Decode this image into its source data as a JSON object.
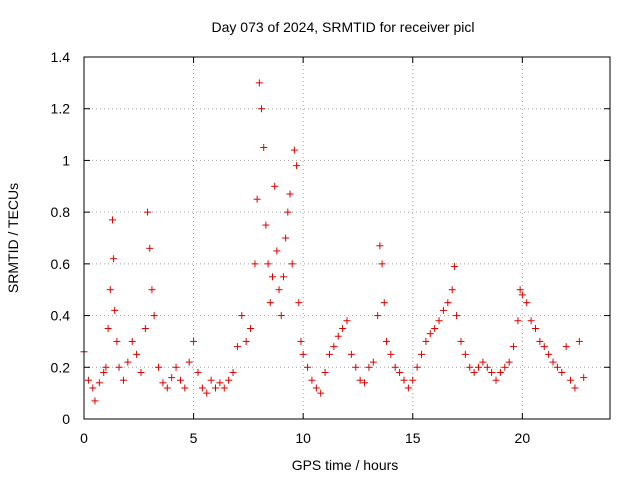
{
  "chart_data": {
    "type": "scatter",
    "title": "Day 073 of 2024, SRMTID for receiver picl",
    "xlabel": "GPS time / hours",
    "ylabel": "SRMTID / TECUs",
    "xlim": [
      0,
      24
    ],
    "ylim": [
      0,
      1.4
    ],
    "xticks": [
      0,
      5,
      10,
      15,
      20
    ],
    "yticks": [
      0,
      0.2,
      0.4,
      0.6,
      0.8,
      1,
      1.2,
      1.4
    ],
    "xtick_labels": [
      "0",
      "5",
      "10",
      "15",
      "20"
    ],
    "ytick_labels": [
      "0",
      "0.2",
      "0.4",
      "0.6",
      "0.8",
      "1",
      "1.2",
      "1.4"
    ],
    "grid": true,
    "marker": "+",
    "colors": {
      "series": "#e00000",
      "grid": "#a0a0a0",
      "axes": "#000000"
    },
    "series": [
      {
        "name": "SRMTID",
        "x": [
          0.0,
          0.2,
          0.4,
          0.5,
          0.7,
          0.9,
          1.0,
          1.1,
          1.2,
          1.3,
          1.35,
          1.4,
          1.5,
          1.6,
          1.8,
          2.0,
          2.2,
          2.4,
          2.6,
          2.8,
          2.9,
          3.0,
          3.1,
          3.2,
          3.4,
          3.6,
          3.8,
          4.0,
          4.2,
          4.4,
          4.6,
          4.8,
          5.0,
          5.2,
          5.4,
          5.6,
          5.8,
          6.0,
          6.2,
          6.4,
          6.6,
          6.8,
          7.0,
          7.2,
          7.4,
          7.6,
          7.8,
          7.9,
          8.0,
          8.1,
          8.2,
          8.3,
          8.4,
          8.5,
          8.6,
          8.7,
          8.8,
          8.9,
          9.0,
          9.1,
          9.2,
          9.3,
          9.4,
          9.5,
          9.6,
          9.7,
          9.8,
          9.9,
          10.0,
          10.2,
          10.4,
          10.6,
          10.8,
          11.0,
          11.2,
          11.4,
          11.6,
          11.8,
          12.0,
          12.2,
          12.4,
          12.6,
          12.8,
          13.0,
          13.2,
          13.4,
          13.5,
          13.6,
          13.7,
          13.8,
          14.0,
          14.2,
          14.4,
          14.6,
          14.8,
          15.0,
          15.2,
          15.4,
          15.6,
          15.8,
          16.0,
          16.2,
          16.4,
          16.6,
          16.8,
          16.9,
          17.0,
          17.2,
          17.4,
          17.6,
          17.8,
          18.0,
          18.2,
          18.4,
          18.6,
          18.8,
          19.0,
          19.2,
          19.4,
          19.6,
          19.8,
          19.9,
          20.0,
          20.2,
          20.4,
          20.6,
          20.8,
          21.0,
          21.2,
          21.4,
          21.6,
          21.8,
          22.0,
          22.2,
          22.4,
          22.6,
          22.8
        ],
        "y": [
          0.26,
          0.15,
          0.12,
          0.07,
          0.14,
          0.18,
          0.2,
          0.35,
          0.5,
          0.77,
          0.62,
          0.42,
          0.3,
          0.2,
          0.15,
          0.22,
          0.3,
          0.25,
          0.18,
          0.35,
          0.8,
          0.66,
          0.5,
          0.4,
          0.2,
          0.14,
          0.12,
          0.16,
          0.2,
          0.15,
          0.12,
          0.22,
          0.3,
          0.18,
          0.12,
          0.1,
          0.15,
          0.12,
          0.14,
          0.12,
          0.15,
          0.18,
          0.28,
          0.4,
          0.3,
          0.35,
          0.6,
          0.85,
          1.3,
          1.2,
          1.05,
          0.75,
          0.6,
          0.45,
          0.55,
          0.9,
          0.65,
          0.5,
          0.4,
          0.55,
          0.7,
          0.8,
          0.87,
          0.6,
          1.04,
          0.98,
          0.45,
          0.3,
          0.25,
          0.2,
          0.15,
          0.12,
          0.1,
          0.18,
          0.25,
          0.28,
          0.32,
          0.35,
          0.38,
          0.25,
          0.2,
          0.15,
          0.14,
          0.2,
          0.22,
          0.4,
          0.67,
          0.6,
          0.45,
          0.3,
          0.25,
          0.2,
          0.18,
          0.15,
          0.12,
          0.15,
          0.2,
          0.25,
          0.3,
          0.33,
          0.35,
          0.38,
          0.42,
          0.45,
          0.5,
          0.59,
          0.4,
          0.3,
          0.25,
          0.2,
          0.18,
          0.2,
          0.22,
          0.2,
          0.18,
          0.15,
          0.18,
          0.2,
          0.22,
          0.28,
          0.38,
          0.5,
          0.48,
          0.45,
          0.38,
          0.35,
          0.3,
          0.28,
          0.25,
          0.22,
          0.2,
          0.18,
          0.28,
          0.15,
          0.12,
          0.3,
          0.16
        ]
      }
    ]
  }
}
